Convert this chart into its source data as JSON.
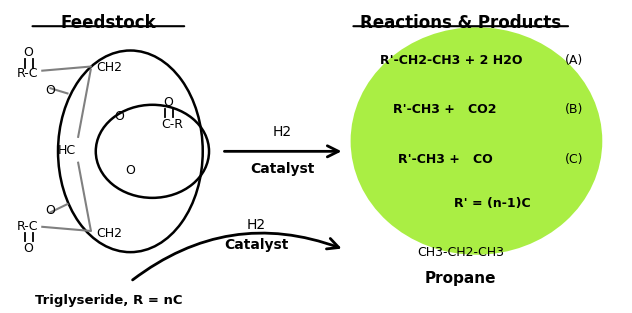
{
  "bg_color": "#ffffff",
  "green_circle_color": "#aaee44",
  "title_feedstock": "Feedstock",
  "title_reactions": "Reactions & Products",
  "triglyseride_label": "Triglyseride, R = nC",
  "propane_label": "Propane",
  "propane_formula": "CH3-CH2-CH3",
  "h2_label": "H2",
  "catalyst_label": "Catalyst",
  "reaction_A": "R'-CH2-CH3 + 2 H2O",
  "reaction_B": "R'-CH3 +   CO2",
  "reaction_C": "R'-CH3 +   CO",
  "reaction_D": "R' = (n-1)C",
  "label_A": "(A)",
  "label_B": "(B)",
  "label_C": "(C)"
}
